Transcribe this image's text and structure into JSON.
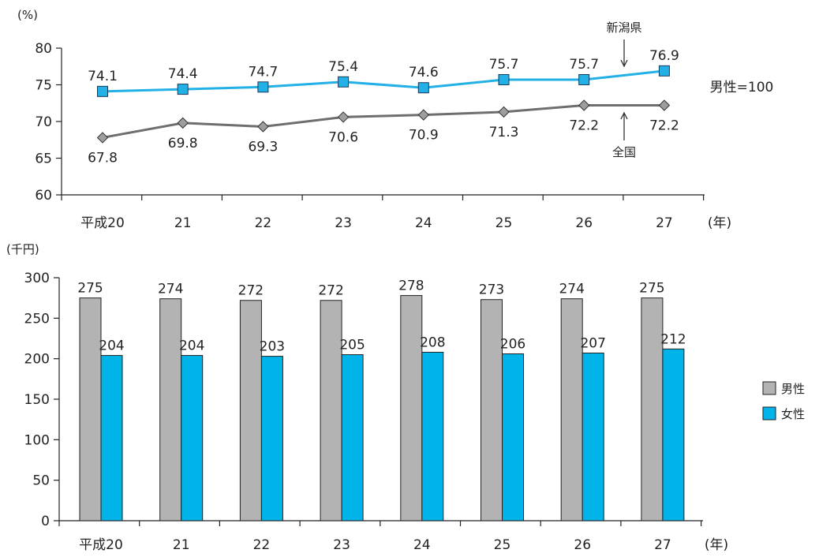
{
  "colors": {
    "national": "#6e6e6e",
    "niigata": "#22b0e6",
    "male_bar": "#b3b3b3",
    "female_bar": "#00b4ea",
    "axis": "#222222"
  },
  "chart_data": [
    {
      "type": "line",
      "categories": [
        "平成20",
        "21",
        "22",
        "23",
        "24",
        "25",
        "26",
        "27"
      ],
      "ylabel": "(%)",
      "xlabel": "(年)",
      "ylim": [
        60,
        80
      ],
      "yticks": [
        60,
        65,
        70,
        75,
        80
      ],
      "note": "男性=100",
      "series": [
        {
          "name": "新潟県",
          "marker": "square",
          "color": "#22b0e6",
          "values": [
            74.1,
            74.4,
            74.7,
            75.4,
            74.6,
            75.7,
            75.7,
            76.9
          ],
          "labels": [
            "74.1",
            "74.4",
            "74.7",
            "75.4",
            "74.6",
            "75.7",
            "75.7",
            "76.9"
          ]
        },
        {
          "name": "全国",
          "marker": "diamond",
          "color": "#6e6e6e",
          "values": [
            67.8,
            69.8,
            69.3,
            70.6,
            70.9,
            71.3,
            72.2,
            72.2
          ],
          "labels": [
            "67.8",
            "69.8",
            "69.3",
            "70.6",
            "70.9",
            "71.3",
            "72.2",
            "72.2"
          ]
        }
      ]
    },
    {
      "type": "bar",
      "categories": [
        "平成20",
        "21",
        "22",
        "23",
        "24",
        "25",
        "26",
        "27"
      ],
      "ylabel": "(千円)",
      "xlabel": "(年)",
      "ylim": [
        0,
        300
      ],
      "yticks": [
        0,
        50,
        100,
        150,
        200,
        250,
        300
      ],
      "legend_position": "right",
      "series": [
        {
          "name": "男性",
          "color": "#b3b3b3",
          "values": [
            275,
            274,
            272,
            272,
            278,
            273,
            274,
            275
          ]
        },
        {
          "name": "女性",
          "color": "#00b4ea",
          "values": [
            204,
            204,
            203,
            205,
            208,
            206,
            207,
            212
          ]
        }
      ]
    }
  ]
}
